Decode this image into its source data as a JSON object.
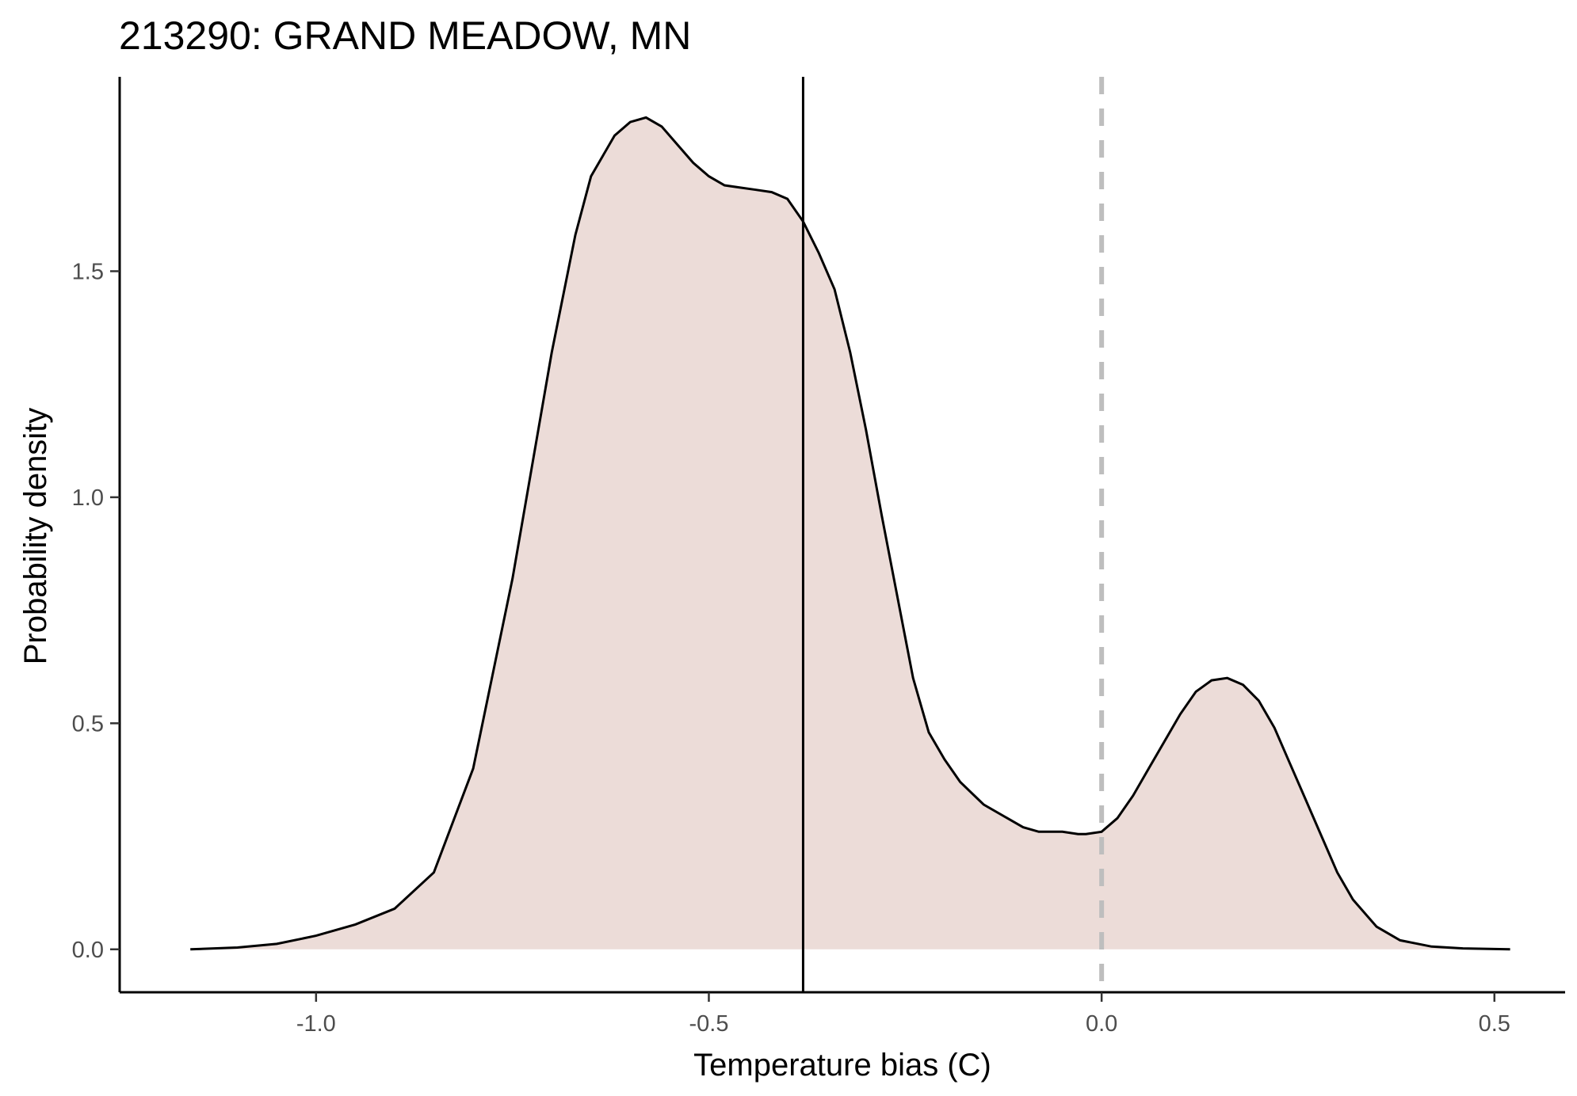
{
  "chart_data": {
    "type": "area",
    "title": "213290: GRAND MEADOW, MN",
    "xlabel": "Temperature bias (C)",
    "ylabel": "Probability density",
    "xlim": [
      -1.25,
      0.59
    ],
    "ylim": [
      -0.095,
      1.93
    ],
    "x_ticks": [
      -1.0,
      -0.5,
      0.0,
      0.5
    ],
    "x_tick_labels": [
      "-1.0",
      "-0.5",
      "0.0",
      "0.5"
    ],
    "y_ticks": [
      0.0,
      0.5,
      1.0,
      1.5
    ],
    "y_tick_labels": [
      "0.0",
      "0.5",
      "1.0",
      "1.5"
    ],
    "grid": false,
    "fill_color": "#ecdcd8",
    "line_color": "#000000",
    "reference_lines": [
      {
        "x": -0.38,
        "style": "solid",
        "color": "#000000"
      },
      {
        "x": 0.0,
        "style": "dashed",
        "color": "#bebebe"
      }
    ],
    "series": [
      {
        "x": [
          -1.16,
          -1.1,
          -1.05,
          -1.0,
          -0.95,
          -0.9,
          -0.85,
          -0.8,
          -0.75,
          -0.72,
          -0.7,
          -0.67,
          -0.65,
          -0.62,
          -0.6,
          -0.58,
          -0.56,
          -0.54,
          -0.52,
          -0.5,
          -0.48,
          -0.46,
          -0.44,
          -0.42,
          -0.4,
          -0.38,
          -0.36,
          -0.34,
          -0.32,
          -0.3,
          -0.28,
          -0.26,
          -0.24,
          -0.22,
          -0.2,
          -0.18,
          -0.15,
          -0.12,
          -0.1,
          -0.08,
          -0.05,
          -0.03,
          -0.02,
          0.0,
          0.02,
          0.04,
          0.06,
          0.08,
          0.1,
          0.12,
          0.14,
          0.16,
          0.18,
          0.2,
          0.22,
          0.24,
          0.26,
          0.28,
          0.3,
          0.32,
          0.35,
          0.38,
          0.42,
          0.46,
          0.52
        ],
        "y": [
          0.0,
          0.004,
          0.012,
          0.03,
          0.055,
          0.09,
          0.17,
          0.4,
          0.82,
          1.12,
          1.32,
          1.58,
          1.71,
          1.8,
          1.83,
          1.84,
          1.82,
          1.78,
          1.74,
          1.71,
          1.69,
          1.685,
          1.68,
          1.675,
          1.66,
          1.61,
          1.54,
          1.46,
          1.32,
          1.15,
          0.96,
          0.78,
          0.6,
          0.48,
          0.42,
          0.37,
          0.32,
          0.29,
          0.27,
          0.26,
          0.26,
          0.255,
          0.255,
          0.26,
          0.29,
          0.34,
          0.4,
          0.46,
          0.52,
          0.57,
          0.595,
          0.6,
          0.585,
          0.55,
          0.49,
          0.41,
          0.33,
          0.25,
          0.17,
          0.11,
          0.05,
          0.02,
          0.006,
          0.002,
          0.0
        ]
      }
    ]
  }
}
